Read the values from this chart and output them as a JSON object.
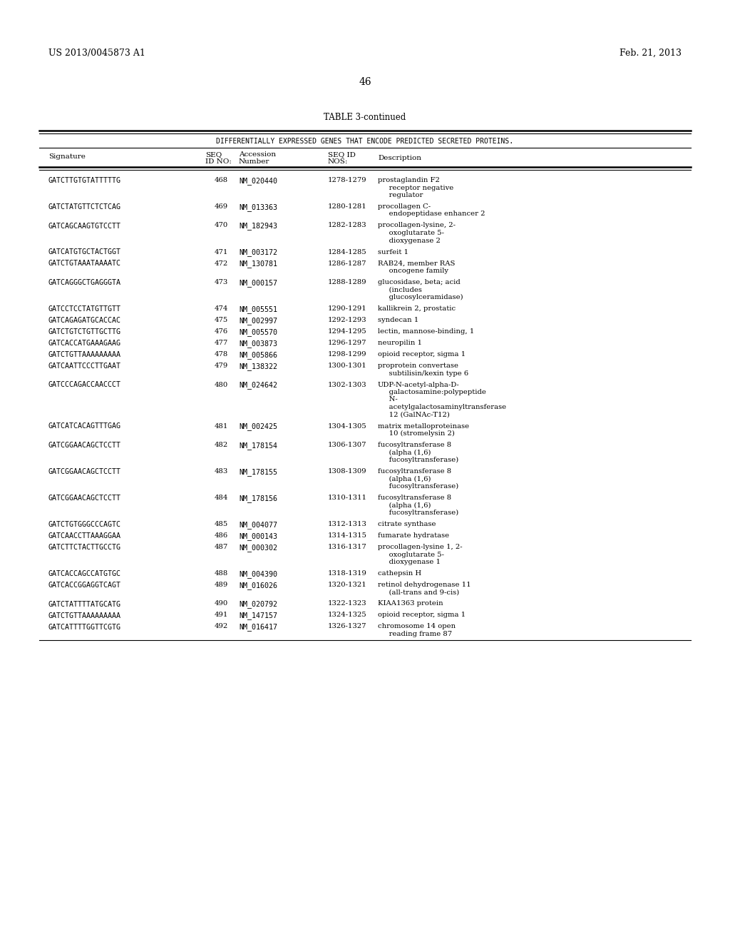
{
  "header_left": "US 2013/0045873 A1",
  "header_right": "Feb. 21, 2013",
  "page_number": "46",
  "table_title": "TABLE 3-continued",
  "table_subtitle": "DIFFERENTIALLY EXPRESSED GENES THAT ENCODE PREDICTED SECRETED PROTEINS.",
  "rows": [
    [
      "GATCTTGTGTATTTTTG",
      "468",
      "NM_020440",
      "1278-1279",
      "prostaglandin F2\n     receptor negative\n     regulator"
    ],
    [
      "GATCTATGTTCTCTCAG",
      "469",
      "NM_013363",
      "1280-1281",
      "procollagen C-\n     endopeptidase enhancer 2"
    ],
    [
      "GATCAGCAAGTGTCCTT",
      "470",
      "NM_182943",
      "1282-1283",
      "procollagen-lysine, 2-\n     oxoglutarate 5-\n     dioxygenase 2"
    ],
    [
      "GATCATGTGCTACTGGT",
      "471",
      "NM_003172",
      "1284-1285",
      "surfeit 1"
    ],
    [
      "GATCTGTAAATAAAATC",
      "472",
      "NM_130781",
      "1286-1287",
      "RAB24, member RAS\n     oncogene family"
    ],
    [
      "GATCAGGGCTGAGGGTA",
      "473",
      "NM_000157",
      "1288-1289",
      "glucosidase, beta; acid\n     (includes\n     glucosylceramidase)"
    ],
    [
      "GATCCTCCTATGTTGTT",
      "474",
      "NM_005551",
      "1290-1291",
      "kallikrein 2, prostatic"
    ],
    [
      "GATCAGAGATGCACCAC",
      "475",
      "NM_002997",
      "1292-1293",
      "syndecan 1"
    ],
    [
      "GATCTGTCTGTTGCTTG",
      "476",
      "NM_005570",
      "1294-1295",
      "lectin, mannose-binding, 1"
    ],
    [
      "GATCACCATGAAAGAAG",
      "477",
      "NM_003873",
      "1296-1297",
      "neuropilin 1"
    ],
    [
      "GATCTGTTAAAAAAAAA",
      "478",
      "NM_005866",
      "1298-1299",
      "opioid receptor, sigma 1"
    ],
    [
      "GATCAATTCCCTTGAAT",
      "479",
      "NM_138322",
      "1300-1301",
      "proprotein convertase\n     subtilisin/kexin type 6"
    ],
    [
      "GATCCCAGACCAACCCT",
      "480",
      "NM_024642",
      "1302-1303",
      "UDP-N-acetyl-alpha-D-\n     galactosamine:polypeptide\n     N-\n     acetylgalactosaminyltransferase\n     12 (GalNAc-T12)"
    ],
    [
      "GATCATCACAGTTTGAG",
      "481",
      "NM_002425",
      "1304-1305",
      "matrix metalloproteinase\n     10 (stromelysin 2)"
    ],
    [
      "GATCGGAACAGCTCCTT",
      "482",
      "NM_178154",
      "1306-1307",
      "fucosyltransferase 8\n     (alpha (1,6)\n     fucosyltransferase)"
    ],
    [
      "GATCGGAACAGCTCCTT",
      "483",
      "NM_178155",
      "1308-1309",
      "fucosyltransferase 8\n     (alpha (1,6)\n     fucosyltransferase)"
    ],
    [
      "GATCGGAACAGCTCCTT",
      "484",
      "NM_178156",
      "1310-1311",
      "fucosyltransferase 8\n     (alpha (1,6)\n     fucosyltransferase)"
    ],
    [
      "GATCTGTGGGCCCAGTC",
      "485",
      "NM_004077",
      "1312-1313",
      "citrate synthase"
    ],
    [
      "GATCAACCTTAAAGGAA",
      "486",
      "NM_000143",
      "1314-1315",
      "fumarate hydratase"
    ],
    [
      "GATCTTCTACTTGCCTG",
      "487",
      "NM_000302",
      "1316-1317",
      "procollagen-lysine 1, 2-\n     oxoglutarate 5-\n     dioxygenase 1"
    ],
    [
      "GATCACCAGCCATGTGC",
      "488",
      "NM_004390",
      "1318-1319",
      "cathepsin H"
    ],
    [
      "GATCACCGGAGGTCAGT",
      "489",
      "NM_016026",
      "1320-1321",
      "retinol dehydrogenase 11\n     (all-trans and 9-cis)"
    ],
    [
      "GATCTATTTTATGCATG",
      "490",
      "NM_020792",
      "1322-1323",
      "KIAA1363 protein"
    ],
    [
      "GATCTGTTAAAAAAAAA",
      "491",
      "NM_147157",
      "1324-1325",
      "opioid receptor, sigma 1"
    ],
    [
      "GATCATTTTGGTTCGTG",
      "492",
      "NM_016417",
      "1326-1327",
      "chromosome 14 open\n     reading frame 87"
    ]
  ],
  "bg_color": "#ffffff",
  "text_color": "#000000"
}
